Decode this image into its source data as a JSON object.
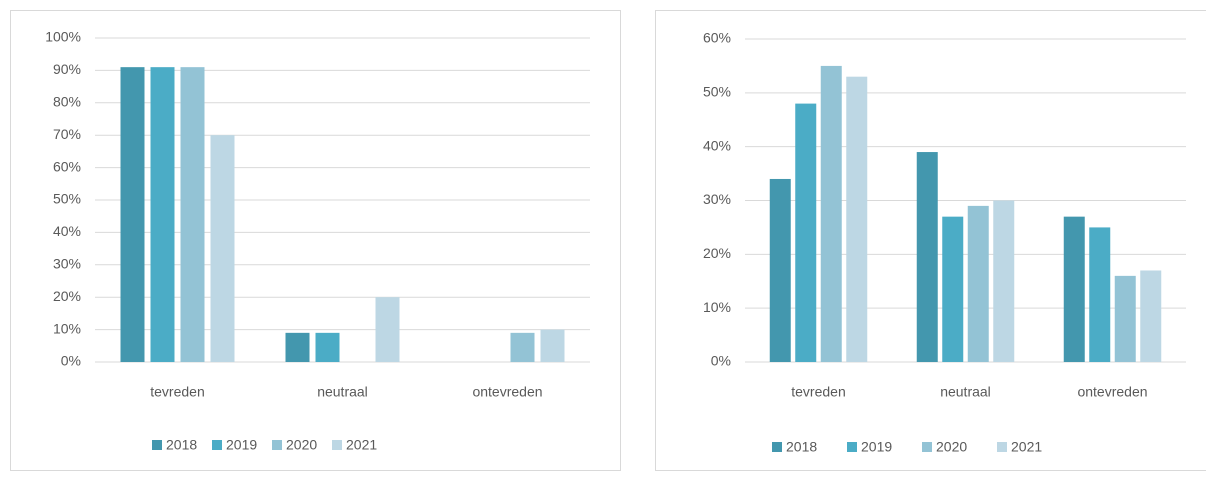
{
  "chart_data": [
    {
      "type": "bar",
      "categories": [
        "tevreden",
        "neutraal",
        "ontevreden"
      ],
      "series": [
        {
          "name": "2018",
          "color": "#4397ae",
          "values": [
            91,
            9,
            0
          ]
        },
        {
          "name": "2019",
          "color": "#4bacc6",
          "values": [
            91,
            9,
            0
          ]
        },
        {
          "name": "2020",
          "color": "#93c3d5",
          "values": [
            91,
            0,
            9
          ]
        },
        {
          "name": "2021",
          "color": "#bdd7e4",
          "values": [
            70,
            20,
            10
          ]
        }
      ],
      "ylim": [
        0,
        100
      ],
      "yticks": [
        {
          "value": 0,
          "label": "0%"
        },
        {
          "value": 10,
          "label": "10%"
        },
        {
          "value": 20,
          "label": "20%"
        },
        {
          "value": 30,
          "label": "30%"
        },
        {
          "value": 40,
          "label": "40%"
        },
        {
          "value": 50,
          "label": "50%"
        },
        {
          "value": 60,
          "label": "60%"
        },
        {
          "value": 70,
          "label": "70%"
        },
        {
          "value": 80,
          "label": "80%"
        },
        {
          "value": 90,
          "label": "90%"
        },
        {
          "value": 100,
          "label": "100%"
        }
      ],
      "grid": true,
      "legend": "bottom"
    },
    {
      "type": "bar",
      "categories": [
        "tevreden",
        "neutraal",
        "ontevreden"
      ],
      "series": [
        {
          "name": "2018",
          "color": "#4397ae",
          "values": [
            34,
            39,
            27
          ]
        },
        {
          "name": "2019",
          "color": "#4bacc6",
          "values": [
            48,
            27,
            25
          ]
        },
        {
          "name": "2020",
          "color": "#93c3d5",
          "values": [
            55,
            29,
            16
          ]
        },
        {
          "name": "2021",
          "color": "#bdd7e4",
          "values": [
            53,
            30,
            17
          ]
        }
      ],
      "ylim": [
        0,
        60
      ],
      "yticks": [
        {
          "value": 0,
          "label": "0%"
        },
        {
          "value": 10,
          "label": "10%"
        },
        {
          "value": 20,
          "label": "20%"
        },
        {
          "value": 30,
          "label": "30%"
        },
        {
          "value": 40,
          "label": "40%"
        },
        {
          "value": 50,
          "label": "50%"
        },
        {
          "value": 60,
          "label": "60%"
        }
      ],
      "grid": true,
      "legend": "bottom"
    }
  ]
}
